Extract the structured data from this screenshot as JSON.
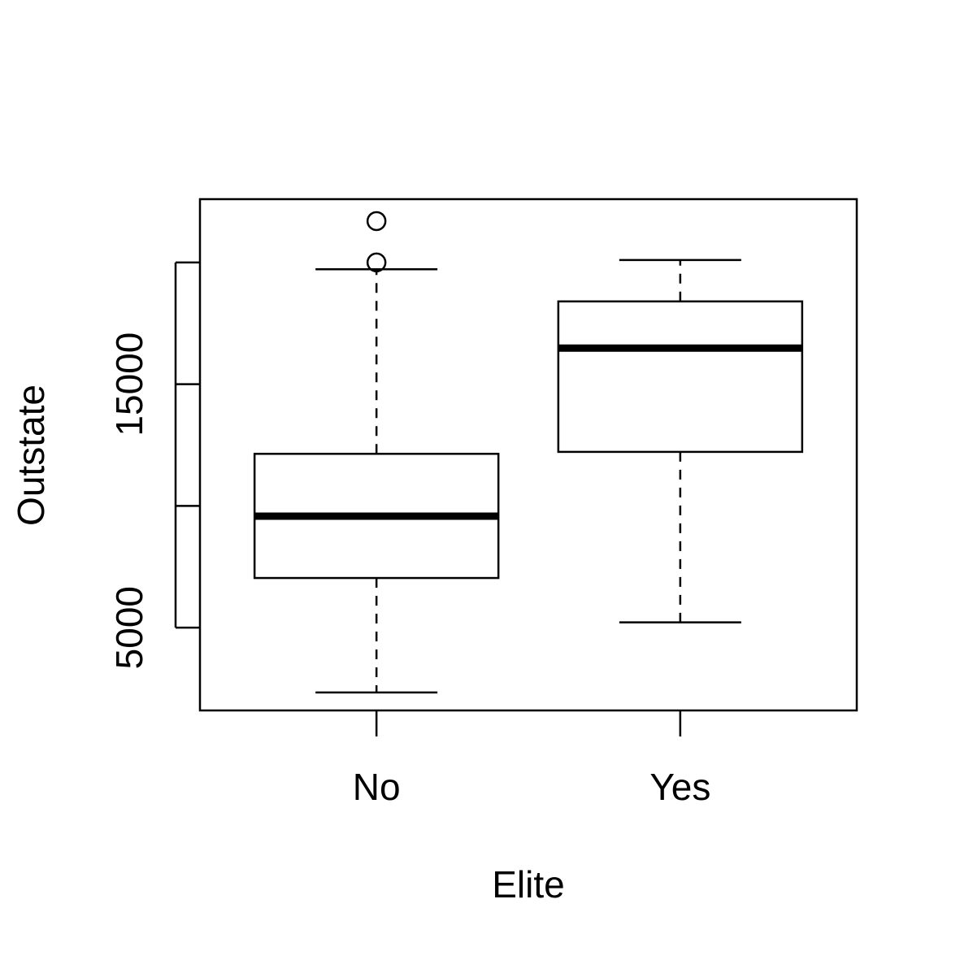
{
  "chart_data": {
    "type": "boxplot",
    "xlabel": "Elite",
    "ylabel": "Outstate",
    "categories": [
      "No",
      "Yes"
    ],
    "y_ticks": [
      5000,
      10000,
      15000,
      20000
    ],
    "y_tick_labels_printed": [
      "5000",
      "15000"
    ],
    "ylim": [
      1600,
      22600
    ],
    "boxes": [
      {
        "category": "No",
        "min": 2340,
        "q1": 7040,
        "median": 9580,
        "q3": 12140,
        "max": 19720,
        "outliers": [
          20000,
          21700
        ]
      },
      {
        "category": "Yes",
        "min": 5220,
        "q1": 12220,
        "median": 16480,
        "q3": 18400,
        "max": 20100,
        "outliers": []
      }
    ],
    "grid": false,
    "legend": "none"
  }
}
